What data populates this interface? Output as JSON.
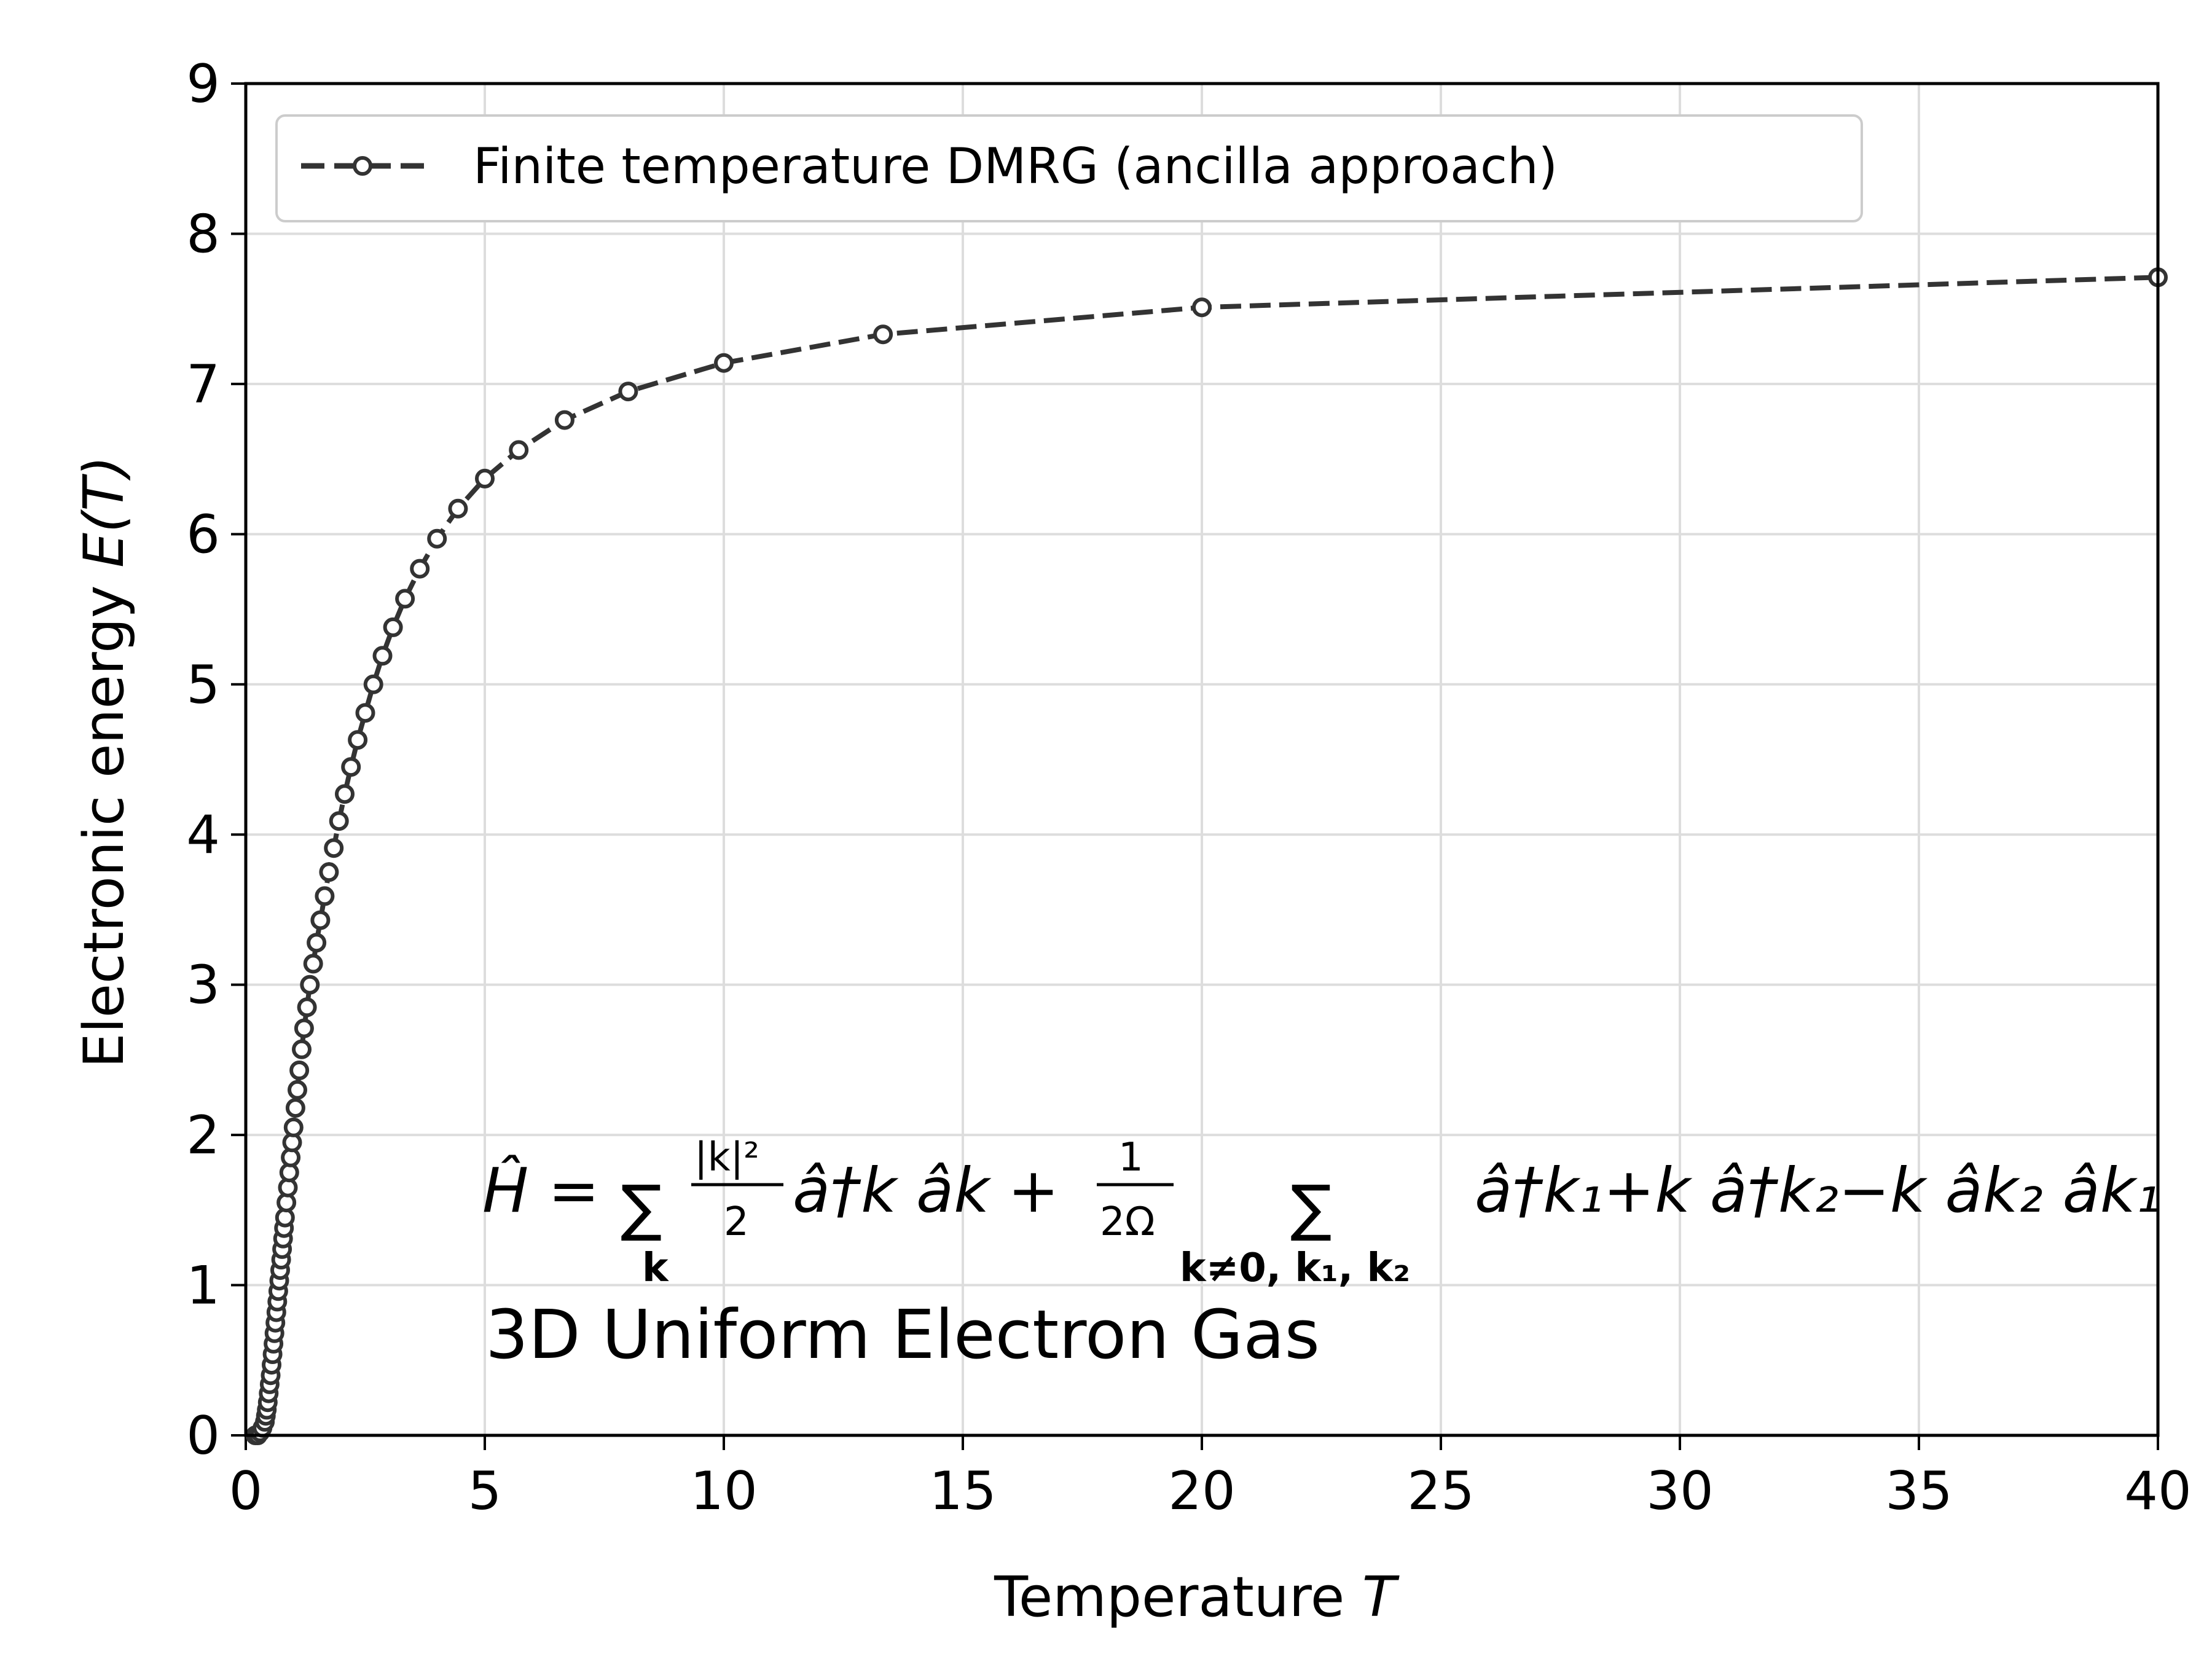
{
  "chart_data": {
    "type": "line",
    "xlabel": "Temperature T",
    "xlabel_main": "Temperature ",
    "xlabel_var": "T",
    "ylabel_main": "Electronic energy ",
    "ylabel_var": "E(T)",
    "xlim": [
      0,
      40
    ],
    "ylim": [
      0,
      9
    ],
    "xticks": [
      0,
      5,
      10,
      15,
      20,
      25,
      30,
      35,
      40
    ],
    "yticks": [
      0,
      1,
      2,
      3,
      4,
      5,
      6,
      7,
      8,
      9
    ],
    "grid": true,
    "legend_position": "top-left",
    "annotation": "3D Uniform Electron Gas",
    "formula": {
      "lhs": "Ĥ = ",
      "sum": "∑",
      "frac_num": "|k|²",
      "frac_den": "2",
      "term1": "â†k âk",
      "plus": "+",
      "frac2_num": "1",
      "frac2_den": "2Ω",
      "sub1": "k",
      "sub2": "k≠0, k₁, k₂",
      "term2": "â†k₁+k â†k₂−k âk₂ âk₁"
    },
    "series": [
      {
        "name": "Finite temperature DMRG (ancilla approach)",
        "color": "#333333",
        "line_style": "dashed",
        "marker": "open-circle",
        "x": [
          0.2,
          0.25,
          0.3,
          0.35,
          0.4,
          0.42,
          0.44,
          0.46,
          0.48,
          0.5,
          0.52,
          0.54,
          0.56,
          0.58,
          0.6,
          0.62,
          0.64,
          0.66,
          0.68,
          0.7,
          0.72,
          0.74,
          0.76,
          0.78,
          0.8,
          0.82,
          0.85,
          0.88,
          0.91,
          0.94,
          0.97,
          1.0,
          1.04,
          1.08,
          1.12,
          1.17,
          1.22,
          1.28,
          1.34,
          1.41,
          1.48,
          1.56,
          1.65,
          1.74,
          1.84,
          1.95,
          2.07,
          2.2,
          2.34,
          2.5,
          2.67,
          2.86,
          3.08,
          3.33,
          3.64,
          4.0,
          4.44,
          5.0,
          5.71,
          6.67,
          8.0,
          10.0,
          13.33,
          20.0,
          40.0
        ],
        "y": [
          0.0,
          0.0,
          0.02,
          0.05,
          0.09,
          0.13,
          0.17,
          0.22,
          0.28,
          0.34,
          0.4,
          0.47,
          0.54,
          0.61,
          0.68,
          0.75,
          0.82,
          0.89,
          0.96,
          1.03,
          1.1,
          1.17,
          1.24,
          1.31,
          1.38,
          1.45,
          1.55,
          1.65,
          1.75,
          1.85,
          1.95,
          2.05,
          2.18,
          2.3,
          2.43,
          2.57,
          2.71,
          2.85,
          3.0,
          3.14,
          3.28,
          3.43,
          3.59,
          3.75,
          3.91,
          4.09,
          4.27,
          4.45,
          4.63,
          4.81,
          5.0,
          5.19,
          5.38,
          5.57,
          5.77,
          5.97,
          6.17,
          6.37,
          6.56,
          6.76,
          6.95,
          7.14,
          7.33,
          7.51,
          7.71
        ]
      }
    ]
  }
}
